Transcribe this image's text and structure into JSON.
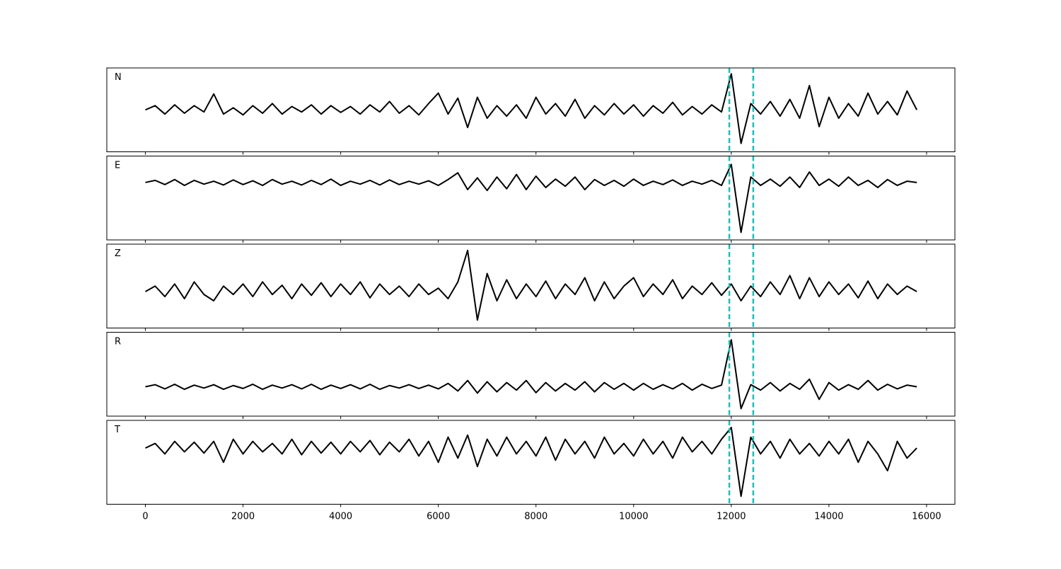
{
  "chart_data": [
    {
      "type": "line",
      "label": "N",
      "color": "#000000",
      "xlim": [
        -790,
        16580
      ],
      "ylim": [
        -1,
        1
      ],
      "xticks": [
        0,
        2000,
        4000,
        6000,
        8000,
        10000,
        12000,
        14000,
        16000
      ],
      "vlines": [
        11960,
        12450
      ],
      "vline_color": "#17bebf",
      "x": [
        0,
        200,
        400,
        600,
        800,
        1000,
        1200,
        1400,
        1600,
        1800,
        2000,
        2200,
        2400,
        2600,
        2800,
        3000,
        3200,
        3400,
        3600,
        3800,
        4000,
        4200,
        4400,
        4600,
        4800,
        5000,
        5200,
        5400,
        5600,
        5800,
        6000,
        6200,
        6400,
        6600,
        6800,
        7000,
        7200,
        7400,
        7600,
        7800,
        8000,
        8200,
        8400,
        8600,
        8800,
        9000,
        9200,
        9400,
        9600,
        9800,
        10000,
        10200,
        10400,
        10600,
        10800,
        11000,
        11200,
        11400,
        11600,
        11800,
        12000,
        12200,
        12400,
        12600,
        12800,
        13000,
        13200,
        13400,
        13600,
        13800,
        14000,
        14200,
        14400,
        14600,
        14800,
        15000,
        15200,
        15400,
        15600,
        15800
      ],
      "values": [
        0,
        0.1,
        -0.1,
        0.12,
        -0.08,
        0.1,
        -0.05,
        0.38,
        -0.1,
        0.05,
        -0.12,
        0.1,
        -0.08,
        0.15,
        -0.1,
        0.08,
        -0.05,
        0.12,
        -0.1,
        0.1,
        -0.06,
        0.08,
        -0.1,
        0.12,
        -0.05,
        0.2,
        -0.08,
        0.1,
        -0.12,
        0.15,
        0.4,
        -0.1,
        0.28,
        -0.42,
        0.3,
        -0.2,
        0.1,
        -0.15,
        0.12,
        -0.2,
        0.3,
        -0.1,
        0.15,
        -0.15,
        0.25,
        -0.2,
        0.1,
        -0.12,
        0.15,
        -0.1,
        0.12,
        -0.15,
        0.1,
        -0.08,
        0.18,
        -0.12,
        0.08,
        -0.1,
        0.12,
        -0.05,
        0.86,
        -0.8,
        0.15,
        -0.1,
        0.2,
        -0.15,
        0.25,
        -0.2,
        0.58,
        -0.4,
        0.3,
        -0.2,
        0.15,
        -0.15,
        0.4,
        -0.1,
        0.2,
        -0.12,
        0.45,
        0.0
      ]
    },
    {
      "type": "line",
      "label": "E",
      "color": "#000000",
      "xlim": [
        -790,
        16580
      ],
      "ylim": [
        -1,
        1
      ],
      "xticks": [
        0,
        2000,
        4000,
        6000,
        8000,
        10000,
        12000,
        14000,
        16000
      ],
      "vlines": [
        11960,
        12450
      ],
      "vline_color": "#17bebf",
      "x": [
        0,
        200,
        400,
        600,
        800,
        1000,
        1200,
        1400,
        1600,
        1800,
        2000,
        2200,
        2400,
        2600,
        2800,
        3000,
        3200,
        3400,
        3600,
        3800,
        4000,
        4200,
        4400,
        4600,
        4800,
        5000,
        5200,
        5400,
        5600,
        5800,
        6000,
        6200,
        6400,
        6600,
        6800,
        7000,
        7200,
        7400,
        7600,
        7800,
        8000,
        8200,
        8400,
        8600,
        8800,
        9000,
        9200,
        9400,
        9600,
        9800,
        10000,
        10200,
        10400,
        10600,
        10800,
        11000,
        11200,
        11400,
        11600,
        11800,
        12000,
        12200,
        12400,
        12600,
        12800,
        13000,
        13200,
        13400,
        13600,
        13800,
        14000,
        14200,
        14400,
        14600,
        14800,
        15000,
        15200,
        15400,
        15600,
        15800
      ],
      "values": [
        0.37,
        0.42,
        0.32,
        0.44,
        0.3,
        0.42,
        0.33,
        0.4,
        0.31,
        0.43,
        0.32,
        0.41,
        0.3,
        0.44,
        0.33,
        0.4,
        0.31,
        0.42,
        0.32,
        0.45,
        0.3,
        0.4,
        0.33,
        0.42,
        0.31,
        0.43,
        0.32,
        0.4,
        0.33,
        0.41,
        0.3,
        0.44,
        0.6,
        0.2,
        0.48,
        0.18,
        0.5,
        0.22,
        0.56,
        0.2,
        0.52,
        0.25,
        0.45,
        0.28,
        0.5,
        0.2,
        0.44,
        0.3,
        0.42,
        0.28,
        0.45,
        0.3,
        0.4,
        0.32,
        0.43,
        0.3,
        0.4,
        0.33,
        0.42,
        0.3,
        0.8,
        -0.82,
        0.5,
        0.3,
        0.45,
        0.28,
        0.5,
        0.25,
        0.62,
        0.3,
        0.45,
        0.28,
        0.5,
        0.3,
        0.42,
        0.25,
        0.44,
        0.3,
        0.4,
        0.37
      ]
    },
    {
      "type": "line",
      "label": "Z",
      "color": "#000000",
      "xlim": [
        -790,
        16580
      ],
      "ylim": [
        -1,
        1
      ],
      "xticks": [
        0,
        2000,
        4000,
        6000,
        8000,
        10000,
        12000,
        14000,
        16000
      ],
      "vlines": [
        11960,
        12450
      ],
      "vline_color": "#17bebf",
      "x": [
        0,
        200,
        400,
        600,
        800,
        1000,
        1200,
        1400,
        1600,
        1800,
        2000,
        2200,
        2400,
        2600,
        2800,
        3000,
        3200,
        3400,
        3600,
        3800,
        4000,
        4200,
        4400,
        4600,
        4800,
        5000,
        5200,
        5400,
        5600,
        5800,
        6000,
        6200,
        6400,
        6600,
        6800,
        7000,
        7200,
        7400,
        7600,
        7800,
        8000,
        8200,
        8400,
        8600,
        8800,
        9000,
        9200,
        9400,
        9600,
        9800,
        10000,
        10200,
        10400,
        10600,
        10800,
        11000,
        11200,
        11400,
        11600,
        11800,
        12000,
        12200,
        12400,
        12600,
        12800,
        13000,
        13200,
        13400,
        13600,
        13800,
        14000,
        14200,
        14400,
        14600,
        14800,
        15000,
        15200,
        15400,
        15600,
        15800
      ],
      "values": [
        -0.13,
        0.0,
        -0.25,
        0.05,
        -0.3,
        0.1,
        -0.2,
        -0.35,
        0.0,
        -0.2,
        0.05,
        -0.25,
        0.1,
        -0.2,
        0.02,
        -0.3,
        0.05,
        -0.22,
        0.08,
        -0.25,
        0.05,
        -0.2,
        0.1,
        -0.28,
        0.05,
        -0.2,
        0.0,
        -0.25,
        0.05,
        -0.2,
        -0.05,
        -0.3,
        0.1,
        0.85,
        -0.81,
        0.3,
        -0.35,
        0.15,
        -0.3,
        0.05,
        -0.25,
        0.12,
        -0.3,
        0.05,
        -0.2,
        0.2,
        -0.35,
        0.1,
        -0.3,
        0.0,
        0.2,
        -0.25,
        0.05,
        -0.2,
        0.15,
        -0.3,
        0.0,
        -0.2,
        0.08,
        -0.22,
        0.05,
        -0.35,
        0.0,
        -0.25,
        0.1,
        -0.2,
        0.25,
        -0.3,
        0.2,
        -0.25,
        0.1,
        -0.2,
        0.05,
        -0.28,
        0.12,
        -0.3,
        0.05,
        -0.2,
        0.0,
        -0.13
      ]
    },
    {
      "type": "line",
      "label": "R",
      "color": "#000000",
      "xlim": [
        -790,
        16580
      ],
      "ylim": [
        -1,
        1
      ],
      "xticks": [
        0,
        2000,
        4000,
        6000,
        8000,
        10000,
        12000,
        14000,
        16000
      ],
      "vlines": [
        11960,
        12450
      ],
      "vline_color": "#17bebf",
      "x": [
        0,
        200,
        400,
        600,
        800,
        1000,
        1200,
        1400,
        1600,
        1800,
        2000,
        2200,
        2400,
        2600,
        2800,
        3000,
        3200,
        3400,
        3600,
        3800,
        4000,
        4200,
        4400,
        4600,
        4800,
        5000,
        5200,
        5400,
        5600,
        5800,
        6000,
        6200,
        6400,
        6600,
        6800,
        7000,
        7200,
        7400,
        7600,
        7800,
        8000,
        8200,
        8400,
        8600,
        8800,
        9000,
        9200,
        9400,
        9600,
        9800,
        10000,
        10200,
        10400,
        10600,
        10800,
        11000,
        11200,
        11400,
        11600,
        11800,
        12000,
        12200,
        12400,
        12600,
        12800,
        13000,
        13200,
        13400,
        13600,
        13800,
        14000,
        14200,
        14400,
        14600,
        14800,
        15000,
        15200,
        15400,
        15600,
        15800
      ],
      "values": [
        -0.3,
        -0.25,
        -0.35,
        -0.24,
        -0.36,
        -0.26,
        -0.33,
        -0.25,
        -0.36,
        -0.27,
        -0.34,
        -0.24,
        -0.36,
        -0.26,
        -0.33,
        -0.25,
        -0.35,
        -0.24,
        -0.36,
        -0.26,
        -0.34,
        -0.25,
        -0.35,
        -0.24,
        -0.36,
        -0.27,
        -0.33,
        -0.25,
        -0.34,
        -0.26,
        -0.35,
        -0.22,
        -0.4,
        -0.15,
        -0.45,
        -0.18,
        -0.42,
        -0.2,
        -0.38,
        -0.15,
        -0.44,
        -0.2,
        -0.4,
        -0.22,
        -0.38,
        -0.18,
        -0.42,
        -0.2,
        -0.36,
        -0.22,
        -0.38,
        -0.22,
        -0.36,
        -0.25,
        -0.35,
        -0.22,
        -0.38,
        -0.24,
        -0.34,
        -0.26,
        0.82,
        -0.82,
        -0.25,
        -0.38,
        -0.2,
        -0.4,
        -0.22,
        -0.36,
        -0.12,
        -0.6,
        -0.2,
        -0.38,
        -0.25,
        -0.36,
        -0.15,
        -0.38,
        -0.24,
        -0.35,
        -0.26,
        -0.3
      ]
    },
    {
      "type": "line",
      "label": "T",
      "color": "#000000",
      "xlim": [
        -790,
        16580
      ],
      "ylim": [
        -1,
        1
      ],
      "xticks": [
        0,
        2000,
        4000,
        6000,
        8000,
        10000,
        12000,
        14000,
        16000
      ],
      "vlines": [
        11960,
        12450
      ],
      "vline_color": "#17bebf",
      "x": [
        0,
        200,
        400,
        600,
        800,
        1000,
        1200,
        1400,
        1600,
        1800,
        2000,
        2200,
        2400,
        2600,
        2800,
        3000,
        3200,
        3400,
        3600,
        3800,
        4000,
        4200,
        4400,
        4600,
        4800,
        5000,
        5200,
        5400,
        5600,
        5800,
        6000,
        6200,
        6400,
        6600,
        6800,
        7000,
        7200,
        7400,
        7600,
        7800,
        8000,
        8200,
        8400,
        8600,
        8800,
        9000,
        9200,
        9400,
        9600,
        9800,
        10000,
        10200,
        10400,
        10600,
        10800,
        11000,
        11200,
        11400,
        11600,
        11800,
        12000,
        12200,
        12400,
        12600,
        12800,
        13000,
        13200,
        13400,
        13600,
        13800,
        14000,
        14200,
        14400,
        14600,
        14800,
        15000,
        15200,
        15400,
        15600,
        15800
      ],
      "values": [
        0.34,
        0.45,
        0.2,
        0.5,
        0.25,
        0.48,
        0.22,
        0.5,
        0.0,
        0.55,
        0.2,
        0.5,
        0.25,
        0.45,
        0.2,
        0.55,
        0.18,
        0.5,
        0.22,
        0.48,
        0.2,
        0.5,
        0.25,
        0.52,
        0.18,
        0.48,
        0.25,
        0.55,
        0.15,
        0.5,
        0.0,
        0.6,
        0.1,
        0.65,
        -0.1,
        0.55,
        0.15,
        0.6,
        0.2,
        0.5,
        0.15,
        0.6,
        0.05,
        0.55,
        0.2,
        0.5,
        0.1,
        0.6,
        0.2,
        0.45,
        0.15,
        0.55,
        0.2,
        0.5,
        0.1,
        0.6,
        0.25,
        0.5,
        0.2,
        0.55,
        0.83,
        -0.81,
        0.6,
        0.2,
        0.5,
        0.1,
        0.55,
        0.2,
        0.45,
        0.15,
        0.5,
        0.2,
        0.55,
        0.0,
        0.5,
        0.2,
        -0.2,
        0.5,
        0.1,
        0.34
      ]
    }
  ]
}
